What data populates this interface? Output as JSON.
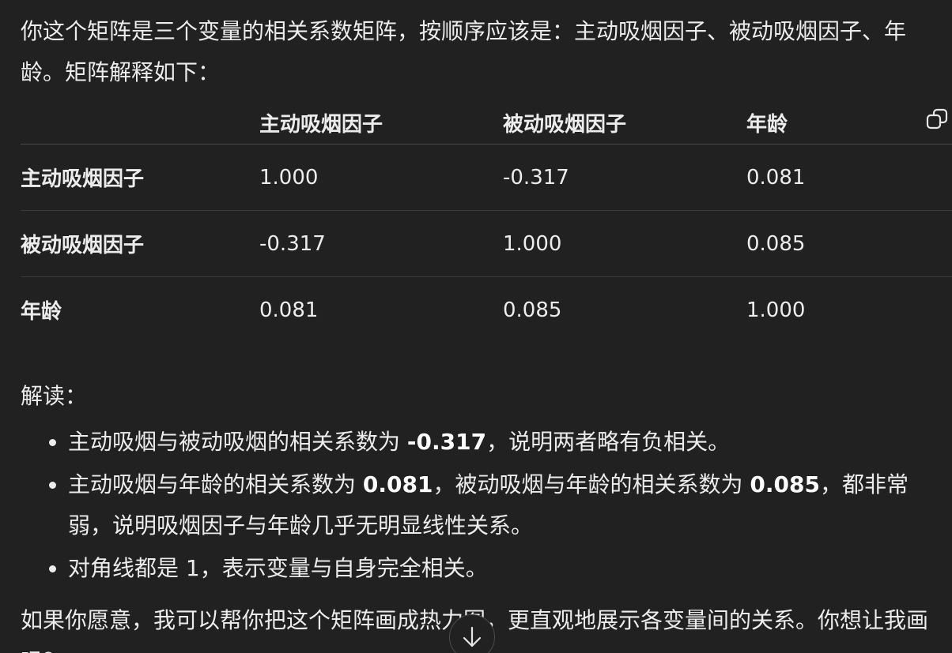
{
  "message": {
    "intro": "你这个矩阵是三个变量的相关系数矩阵，按顺序应该是：主动吸烟因子、被动吸烟因子、年龄。矩阵解释如下：",
    "table": {
      "headers": [
        "",
        "主动吸烟因子",
        "被动吸烟因子",
        "年龄"
      ],
      "rows": [
        {
          "label": "主动吸烟因子",
          "cells": [
            "1.000",
            "-0.317",
            "0.081"
          ]
        },
        {
          "label": "被动吸烟因子",
          "cells": [
            "-0.317",
            "1.000",
            "0.085"
          ]
        },
        {
          "label": "年龄",
          "cells": [
            "0.081",
            "0.085",
            "1.000"
          ]
        }
      ]
    },
    "section_label": "解读：",
    "points": [
      {
        "before": "主动吸烟与被动吸烟的相关系数为 ",
        "bold1": "-0.317",
        "middle": "，说明两者略有负相关。",
        "bold2": "",
        "after": ""
      },
      {
        "before": "主动吸烟与年龄的相关系数为 ",
        "bold1": "0.081",
        "middle": "，被动吸烟与年龄的相关系数为 ",
        "bold2": "0.085",
        "after": "，都非常弱，说明吸烟因子与年龄几乎无明显线性关系。"
      },
      {
        "before": "对角线都是 1，表示变量与自身完全相关。",
        "bold1": "",
        "middle": "",
        "bold2": "",
        "after": ""
      }
    ],
    "outro": "如果你愿意，我可以帮你把这个矩阵画成热力图，更直观地展示各变量间的关系。你想让我画吗？"
  },
  "icons": {
    "copy": "copy-icon",
    "scroll": "arrow-down-icon"
  }
}
